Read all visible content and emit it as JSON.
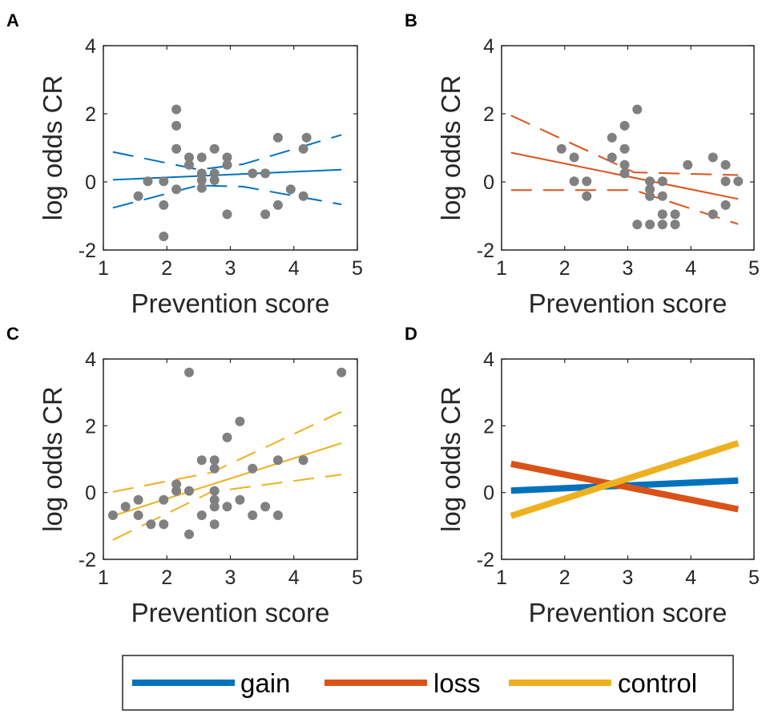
{
  "colors": {
    "gain": "#0072BD",
    "loss": "#D95319",
    "control": "#EDB120",
    "points": "#808080"
  },
  "legend": {
    "items": [
      {
        "key": "gain",
        "label": "gain"
      },
      {
        "key": "loss",
        "label": "loss"
      },
      {
        "key": "control",
        "label": "control"
      }
    ]
  },
  "chart_data": [
    {
      "panel": "A",
      "type": "scatter",
      "condition": "gain",
      "xlabel": "Prevention score",
      "ylabel": "log odds CR",
      "xlim": [
        1,
        5
      ],
      "ylim": [
        -2,
        4
      ],
      "xticks": [
        1,
        2,
        3,
        4,
        5
      ],
      "yticks": [
        -2,
        0,
        2,
        4
      ],
      "points": [
        [
          1.55,
          -0.42
        ],
        [
          1.7,
          0.02
        ],
        [
          1.95,
          0.02
        ],
        [
          1.95,
          -0.68
        ],
        [
          1.95,
          -1.6
        ],
        [
          2.15,
          2.13
        ],
        [
          2.15,
          1.65
        ],
        [
          2.15,
          0.97
        ],
        [
          2.15,
          -0.22
        ],
        [
          2.35,
          0.72
        ],
        [
          2.35,
          0.5
        ],
        [
          2.55,
          0.72
        ],
        [
          2.55,
          0.25
        ],
        [
          2.55,
          0.05
        ],
        [
          2.55,
          -0.18
        ],
        [
          2.75,
          0.97
        ],
        [
          2.75,
          0.25
        ],
        [
          2.75,
          0.05
        ],
        [
          2.95,
          0.72
        ],
        [
          2.95,
          0.5
        ],
        [
          2.95,
          -0.95
        ],
        [
          3.35,
          0.25
        ],
        [
          3.55,
          0.25
        ],
        [
          3.55,
          -0.95
        ],
        [
          3.75,
          1.3
        ],
        [
          3.75,
          -0.68
        ],
        [
          3.95,
          -0.22
        ],
        [
          4.15,
          0.97
        ],
        [
          4.15,
          -0.42
        ],
        [
          4.2,
          1.3
        ]
      ],
      "fit": {
        "x": [
          1.15,
          4.75
        ],
        "y": [
          0.06,
          0.36
        ]
      },
      "ci_upper": {
        "x": [
          1.15,
          2.5,
          3.2,
          4.75
        ],
        "y": [
          0.88,
          0.36,
          0.52,
          1.38
        ]
      },
      "ci_lower": {
        "x": [
          1.15,
          2.5,
          3.2,
          4.75
        ],
        "y": [
          -0.76,
          -0.1,
          -0.14,
          -0.66
        ]
      }
    },
    {
      "panel": "B",
      "type": "scatter",
      "condition": "loss",
      "xlabel": "Prevention score",
      "ylabel": "log odds CR",
      "xlim": [
        1,
        5
      ],
      "ylim": [
        -2,
        4
      ],
      "xticks": [
        1,
        2,
        3,
        4,
        5
      ],
      "yticks": [
        -2,
        0,
        2,
        4
      ],
      "points": [
        [
          1.95,
          0.97
        ],
        [
          2.15,
          0.72
        ],
        [
          2.15,
          0.02
        ],
        [
          2.35,
          0.02
        ],
        [
          2.35,
          -0.42
        ],
        [
          2.75,
          1.3
        ],
        [
          2.75,
          0.72
        ],
        [
          2.95,
          1.65
        ],
        [
          2.95,
          0.97
        ],
        [
          2.95,
          0.5
        ],
        [
          2.95,
          0.25
        ],
        [
          3.15,
          2.13
        ],
        [
          3.15,
          -1.25
        ],
        [
          3.35,
          0.02
        ],
        [
          3.35,
          -0.22
        ],
        [
          3.35,
          -0.42
        ],
        [
          3.35,
          -1.25
        ],
        [
          3.55,
          0.02
        ],
        [
          3.55,
          -0.42
        ],
        [
          3.55,
          -0.95
        ],
        [
          3.55,
          -1.25
        ],
        [
          3.75,
          -0.95
        ],
        [
          3.75,
          -1.25
        ],
        [
          3.95,
          0.5
        ],
        [
          4.35,
          0.72
        ],
        [
          4.35,
          -0.95
        ],
        [
          4.55,
          0.5
        ],
        [
          4.55,
          0.02
        ],
        [
          4.55,
          -0.68
        ],
        [
          4.75,
          0.02
        ]
      ],
      "fit": {
        "x": [
          1.15,
          4.75
        ],
        "y": [
          0.86,
          -0.5
        ]
      },
      "ci_upper": {
        "x": [
          1.15,
          3.1,
          4.75
        ],
        "y": [
          1.95,
          0.28,
          0.2
        ]
      },
      "ci_lower": {
        "x": [
          1.15,
          3.1,
          4.75
        ],
        "y": [
          -0.24,
          -0.24,
          -1.24
        ]
      }
    },
    {
      "panel": "C",
      "type": "scatter",
      "condition": "control",
      "xlabel": "Prevention score",
      "ylabel": "log odds CR",
      "xlim": [
        1,
        5
      ],
      "ylim": [
        -2,
        4
      ],
      "xticks": [
        1,
        2,
        3,
        4,
        5
      ],
      "yticks": [
        -2,
        0,
        2,
        4
      ],
      "points": [
        [
          1.15,
          -0.68
        ],
        [
          1.35,
          -0.42
        ],
        [
          1.55,
          -0.22
        ],
        [
          1.55,
          -0.68
        ],
        [
          1.75,
          -0.95
        ],
        [
          1.95,
          -0.22
        ],
        [
          1.95,
          -0.95
        ],
        [
          2.15,
          0.25
        ],
        [
          2.15,
          0.05
        ],
        [
          2.35,
          3.6
        ],
        [
          2.35,
          0.05
        ],
        [
          2.35,
          -1.25
        ],
        [
          2.55,
          0.97
        ],
        [
          2.55,
          -0.68
        ],
        [
          2.75,
          0.97
        ],
        [
          2.75,
          0.72
        ],
        [
          2.75,
          0.05
        ],
        [
          2.75,
          -0.22
        ],
        [
          2.75,
          -0.42
        ],
        [
          2.75,
          -0.95
        ],
        [
          2.95,
          1.65
        ],
        [
          2.95,
          -0.42
        ],
        [
          3.15,
          2.13
        ],
        [
          3.15,
          -0.22
        ],
        [
          3.35,
          0.72
        ],
        [
          3.35,
          -0.68
        ],
        [
          3.55,
          -0.42
        ],
        [
          3.75,
          0.97
        ],
        [
          3.75,
          -0.68
        ],
        [
          4.15,
          0.97
        ],
        [
          4.75,
          3.6
        ]
      ],
      "fit": {
        "x": [
          1.15,
          4.75
        ],
        "y": [
          -0.7,
          1.48
        ]
      },
      "ci_upper": {
        "x": [
          1.15,
          2.7,
          4.75
        ],
        "y": [
          0.02,
          0.6,
          2.42
        ]
      },
      "ci_lower": {
        "x": [
          1.15,
          2.7,
          4.75
        ],
        "y": [
          -1.42,
          0.02,
          0.54
        ]
      }
    },
    {
      "panel": "D",
      "type": "line",
      "xlabel": "Prevention score",
      "ylabel": "log odds CR",
      "xlim": [
        1,
        5
      ],
      "ylim": [
        -2,
        4
      ],
      "xticks": [
        1,
        2,
        3,
        4,
        5
      ],
      "yticks": [
        -2,
        0,
        2,
        4
      ],
      "series": [
        {
          "name": "gain",
          "x": [
            1.15,
            4.75
          ],
          "y": [
            0.06,
            0.36
          ]
        },
        {
          "name": "loss",
          "x": [
            1.15,
            4.75
          ],
          "y": [
            0.86,
            -0.5
          ]
        },
        {
          "name": "control",
          "x": [
            1.15,
            4.75
          ],
          "y": [
            -0.7,
            1.48
          ]
        }
      ]
    }
  ]
}
